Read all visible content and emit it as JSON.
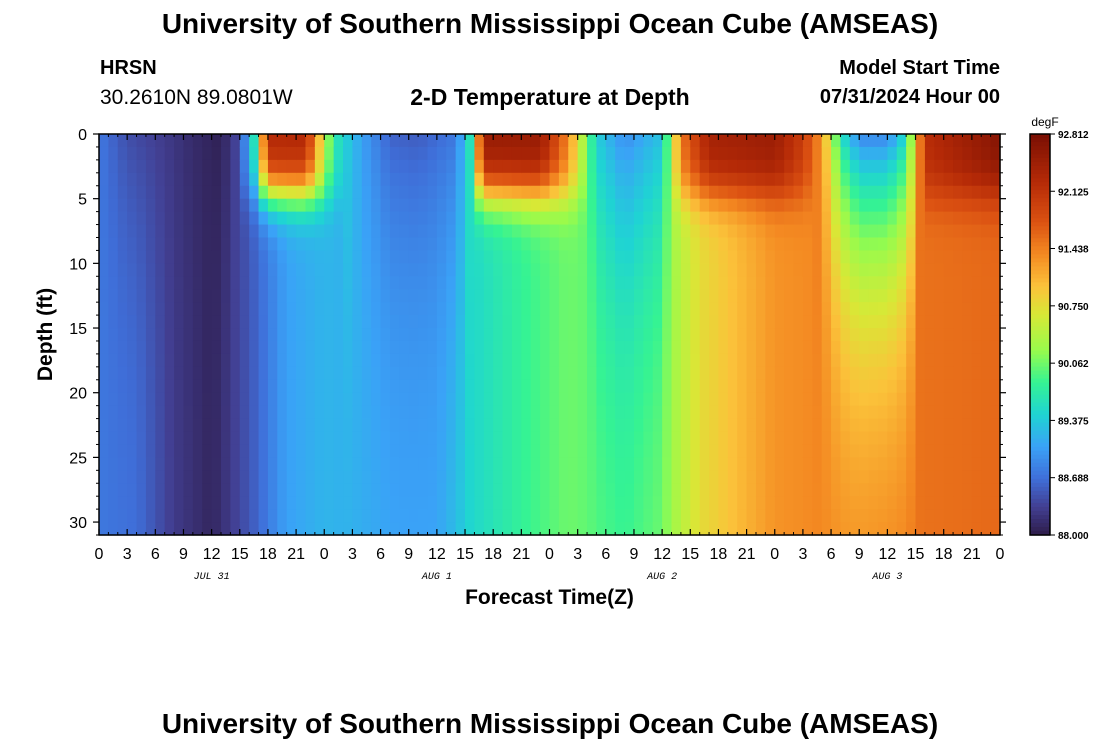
{
  "header": {
    "title": "University of Southern Mississippi Ocean Cube (AMSEAS)",
    "station_id": "HRSN",
    "station_coords": "30.2610N  89.0801W",
    "subtitle": "2-D Temperature at Depth",
    "model_start_label": "Model Start Time",
    "model_start_value": "07/31/2024 Hour 00"
  },
  "footer": {
    "title": "University of Southern Mississippi Ocean Cube (AMSEAS)"
  },
  "chart_data": {
    "type": "heatmap",
    "title": "2-D Temperature at Depth",
    "xlabel": "Forecast Time(Z)",
    "ylabel": "Depth (ft)",
    "xlim": [
      0,
      96
    ],
    "ylim": [
      31,
      0
    ],
    "x_ticks": [
      0,
      3,
      6,
      9,
      12,
      15,
      18,
      21,
      24,
      27,
      30,
      33,
      36,
      39,
      42,
      45,
      48,
      51,
      54,
      57,
      60,
      63,
      66,
      69,
      72,
      75,
      78,
      81,
      84,
      87,
      90,
      93,
      96
    ],
    "x_tick_labels": [
      "0",
      "3",
      "6",
      "9",
      "12",
      "15",
      "18",
      "21",
      "0",
      "3",
      "6",
      "9",
      "12",
      "15",
      "18",
      "21",
      "0",
      "3",
      "6",
      "9",
      "12",
      "15",
      "18",
      "21",
      "0",
      "3",
      "6",
      "9",
      "12",
      "15",
      "18",
      "21",
      "0"
    ],
    "date_labels": [
      {
        "x": 12,
        "label": "JUL 31"
      },
      {
        "x": 36,
        "label": "AUG 1"
      },
      {
        "x": 60,
        "label": "AUG 2"
      },
      {
        "x": 84,
        "label": "AUG 3"
      }
    ],
    "y_ticks": [
      0,
      5,
      10,
      15,
      20,
      25,
      30
    ],
    "colorbar": {
      "unit": "degF",
      "min": 88.0,
      "max": 92.812,
      "tick_values": [
        92.812,
        92.125,
        91.438,
        90.75,
        90.062,
        89.375,
        88.688,
        88.0
      ],
      "tick_labels": [
        "92.812",
        "92.125",
        "91.438",
        "90.750",
        "90.062",
        "89.375",
        "88.688",
        "88.000"
      ],
      "stops": [
        {
          "v": 0.0,
          "color": "#2d1c4a"
        },
        {
          "v": 0.07,
          "color": "#423f92"
        },
        {
          "v": 0.14,
          "color": "#3f6ed8"
        },
        {
          "v": 0.22,
          "color": "#3aa2f7"
        },
        {
          "v": 0.3,
          "color": "#1fd4d3"
        },
        {
          "v": 0.38,
          "color": "#35f393"
        },
        {
          "v": 0.46,
          "color": "#98fb4c"
        },
        {
          "v": 0.55,
          "color": "#d8e836"
        },
        {
          "v": 0.62,
          "color": "#fbc23a"
        },
        {
          "v": 0.7,
          "color": "#f48a22"
        },
        {
          "v": 0.78,
          "color": "#dc5212"
        },
        {
          "v": 0.88,
          "color": "#b52a07"
        },
        {
          "v": 1.0,
          "color": "#7a0f03"
        }
      ]
    },
    "surface_temperature_by_hour": [
      {
        "x": 0,
        "degF": 88.75
      },
      {
        "x": 3,
        "degF": 88.45
      },
      {
        "x": 7,
        "degF": 88.3
      },
      {
        "x": 10,
        "degF": 88.15
      },
      {
        "x": 13,
        "degF": 88.05
      },
      {
        "x": 15,
        "degF": 88.45
      },
      {
        "x": 16.5,
        "degF": 89.6
      },
      {
        "x": 18,
        "degF": 92.3
      },
      {
        "x": 22,
        "degF": 92.3
      },
      {
        "x": 25,
        "degF": 89.7
      },
      {
        "x": 28,
        "degF": 89.05
      },
      {
        "x": 31,
        "degF": 88.6
      },
      {
        "x": 34,
        "degF": 88.55
      },
      {
        "x": 38,
        "degF": 88.75
      },
      {
        "x": 39.5,
        "degF": 89.6
      },
      {
        "x": 41,
        "degF": 92.55
      },
      {
        "x": 47,
        "degF": 92.55
      },
      {
        "x": 50,
        "degF": 91.4
      },
      {
        "x": 53,
        "degF": 89.4
      },
      {
        "x": 56,
        "degF": 88.9
      },
      {
        "x": 60,
        "degF": 89.3
      },
      {
        "x": 62,
        "degF": 91.5
      },
      {
        "x": 65,
        "degF": 92.4
      },
      {
        "x": 72,
        "degF": 92.5
      },
      {
        "x": 75,
        "degF": 92.0
      },
      {
        "x": 77,
        "degF": 91.3
      },
      {
        "x": 79,
        "degF": 89.6
      },
      {
        "x": 81,
        "degF": 88.85
      },
      {
        "x": 84,
        "degF": 88.85
      },
      {
        "x": 86,
        "degF": 89.5
      },
      {
        "x": 88,
        "degF": 92.2
      },
      {
        "x": 96,
        "degF": 92.7
      }
    ],
    "bottom_temperature_by_hour": [
      {
        "x": 0,
        "degF": 88.75
      },
      {
        "x": 4,
        "degF": 88.7
      },
      {
        "x": 8,
        "degF": 88.3
      },
      {
        "x": 12,
        "degF": 88.1
      },
      {
        "x": 16,
        "degF": 88.5
      },
      {
        "x": 20,
        "degF": 89.05
      },
      {
        "x": 24,
        "degF": 89.2
      },
      {
        "x": 32,
        "degF": 89.1
      },
      {
        "x": 36,
        "degF": 89.1
      },
      {
        "x": 40,
        "degF": 89.5
      },
      {
        "x": 45,
        "degF": 89.8
      },
      {
        "x": 50,
        "degF": 90.05
      },
      {
        "x": 56,
        "degF": 89.9
      },
      {
        "x": 60,
        "degF": 90.1
      },
      {
        "x": 64,
        "degF": 90.75
      },
      {
        "x": 72,
        "degF": 91.3
      },
      {
        "x": 84,
        "degF": 91.5
      },
      {
        "x": 96,
        "degF": 91.6
      }
    ]
  }
}
